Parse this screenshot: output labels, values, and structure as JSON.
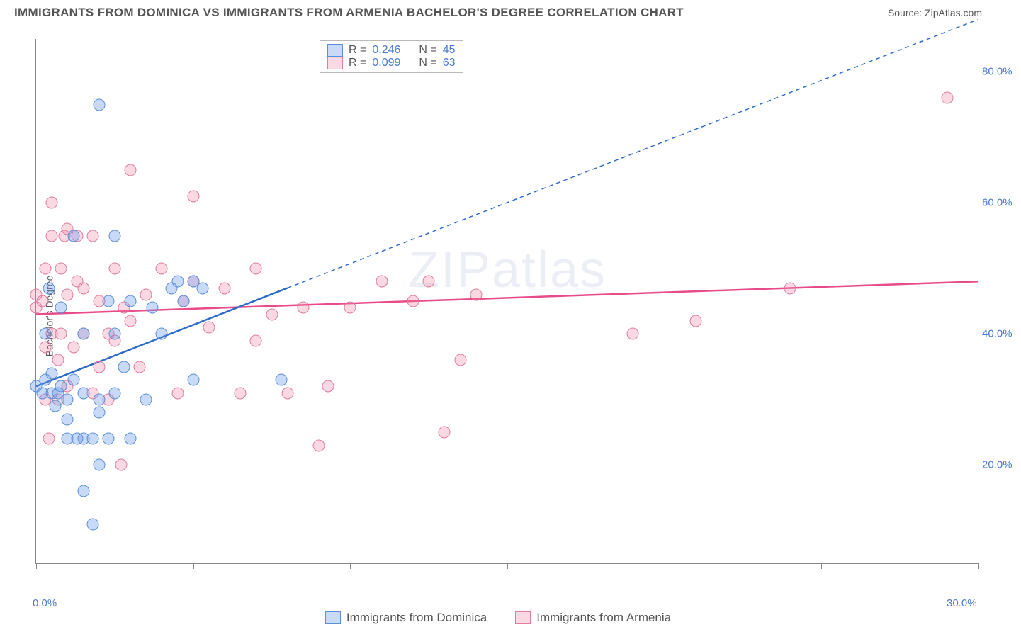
{
  "title": "IMMIGRANTS FROM DOMINICA VS IMMIGRANTS FROM ARMENIA BACHELOR'S DEGREE CORRELATION CHART",
  "source": "Source: ZipAtlas.com",
  "watermark": "ZIPatlas",
  "chart": {
    "type": "scatter",
    "ylabel": "Bachelor's Degree",
    "xlim": [
      0,
      30
    ],
    "ylim": [
      5,
      85
    ],
    "yticks": [
      20,
      40,
      60,
      80
    ],
    "ytick_labels": [
      "20.0%",
      "40.0%",
      "60.0%",
      "80.0%"
    ],
    "xticks": [
      0,
      5,
      10,
      15,
      20,
      25,
      30
    ],
    "xtick_labels": {
      "0": "0.0%",
      "30": "30.0%"
    },
    "grid_color": "#cccccc",
    "background_color": "#ffffff",
    "axis_color": "#888888",
    "tick_label_color": "#4a7bd0",
    "point_radius": 7.5
  },
  "legend_top": {
    "r_label": "R  =",
    "n_label": "N  =",
    "series": [
      {
        "swatch": "blue",
        "r": "0.246",
        "n": "45"
      },
      {
        "swatch": "pink",
        "r": "0.099",
        "n": "63"
      }
    ]
  },
  "legend_bottom": {
    "items": [
      {
        "swatch": "blue",
        "label": "Immigrants from Dominica"
      },
      {
        "swatch": "pink",
        "label": "Immigrants from Armenia"
      }
    ]
  },
  "series": {
    "dominica": {
      "color_fill": "rgba(100,149,237,0.35)",
      "color_stroke": "#5b8fd6",
      "regression": {
        "x1": 0,
        "y1": 32,
        "x2": 8,
        "y2": 47,
        "extend_x2": 30,
        "extend_y2": 88,
        "color": "#2e6bc7",
        "width": 2.5
      },
      "points": [
        [
          0.0,
          32
        ],
        [
          0.2,
          31
        ],
        [
          0.3,
          33
        ],
        [
          0.5,
          31
        ],
        [
          0.5,
          34
        ],
        [
          0.3,
          40
        ],
        [
          0.4,
          47
        ],
        [
          0.6,
          29
        ],
        [
          0.7,
          31
        ],
        [
          0.8,
          32
        ],
        [
          0.8,
          44
        ],
        [
          1.0,
          30
        ],
        [
          1.0,
          27
        ],
        [
          1.0,
          24
        ],
        [
          1.2,
          33
        ],
        [
          1.2,
          55
        ],
        [
          1.3,
          24
        ],
        [
          1.5,
          16
        ],
        [
          1.5,
          24
        ],
        [
          1.5,
          31
        ],
        [
          1.5,
          40
        ],
        [
          1.8,
          11
        ],
        [
          1.8,
          24
        ],
        [
          2.0,
          20
        ],
        [
          2.0,
          28
        ],
        [
          2.0,
          30
        ],
        [
          2.0,
          75
        ],
        [
          2.3,
          24
        ],
        [
          2.3,
          45
        ],
        [
          2.5,
          31
        ],
        [
          2.5,
          40
        ],
        [
          2.5,
          55
        ],
        [
          2.8,
          35
        ],
        [
          3.0,
          24
        ],
        [
          3.0,
          45
        ],
        [
          3.5,
          30
        ],
        [
          3.7,
          44
        ],
        [
          4.0,
          40
        ],
        [
          4.3,
          47
        ],
        [
          4.5,
          48
        ],
        [
          4.7,
          45
        ],
        [
          5.0,
          33
        ],
        [
          5.0,
          48
        ],
        [
          5.3,
          47
        ],
        [
          7.8,
          33
        ]
      ]
    },
    "armenia": {
      "color_fill": "rgba(240,128,160,0.3)",
      "color_stroke": "#e07ba0",
      "regression": {
        "x1": 0,
        "y1": 43,
        "x2": 30,
        "y2": 48,
        "color": "#e94b8a",
        "width": 2.5
      },
      "points": [
        [
          0.0,
          44
        ],
        [
          0.0,
          46
        ],
        [
          0.2,
          45
        ],
        [
          0.3,
          30
        ],
        [
          0.3,
          38
        ],
        [
          0.3,
          50
        ],
        [
          0.4,
          24
        ],
        [
          0.5,
          40
        ],
        [
          0.5,
          55
        ],
        [
          0.5,
          60
        ],
        [
          0.7,
          30
        ],
        [
          0.7,
          36
        ],
        [
          0.8,
          40
        ],
        [
          0.8,
          50
        ],
        [
          0.9,
          55
        ],
        [
          1.0,
          32
        ],
        [
          1.0,
          46
        ],
        [
          1.0,
          56
        ],
        [
          1.2,
          38
        ],
        [
          1.3,
          48
        ],
        [
          1.3,
          55
        ],
        [
          1.5,
          40
        ],
        [
          1.5,
          47
        ],
        [
          1.8,
          31
        ],
        [
          1.8,
          55
        ],
        [
          2.0,
          35
        ],
        [
          2.0,
          45
        ],
        [
          2.3,
          30
        ],
        [
          2.3,
          40
        ],
        [
          2.5,
          39
        ],
        [
          2.5,
          50
        ],
        [
          2.7,
          20
        ],
        [
          2.8,
          44
        ],
        [
          3.0,
          42
        ],
        [
          3.0,
          65
        ],
        [
          3.3,
          35
        ],
        [
          3.5,
          46
        ],
        [
          4.0,
          50
        ],
        [
          4.5,
          31
        ],
        [
          4.7,
          45
        ],
        [
          5.0,
          48
        ],
        [
          5.0,
          61
        ],
        [
          5.5,
          41
        ],
        [
          6.0,
          47
        ],
        [
          6.5,
          31
        ],
        [
          7.0,
          39
        ],
        [
          7.0,
          50
        ],
        [
          7.5,
          43
        ],
        [
          8.0,
          31
        ],
        [
          8.5,
          44
        ],
        [
          9.0,
          23
        ],
        [
          9.3,
          32
        ],
        [
          10.0,
          44
        ],
        [
          11.0,
          48
        ],
        [
          12.0,
          45
        ],
        [
          12.5,
          48
        ],
        [
          13.0,
          25
        ],
        [
          13.5,
          36
        ],
        [
          14.0,
          46
        ],
        [
          19.0,
          40
        ],
        [
          21.0,
          42
        ],
        [
          24.0,
          47
        ],
        [
          29.0,
          76
        ]
      ]
    }
  }
}
